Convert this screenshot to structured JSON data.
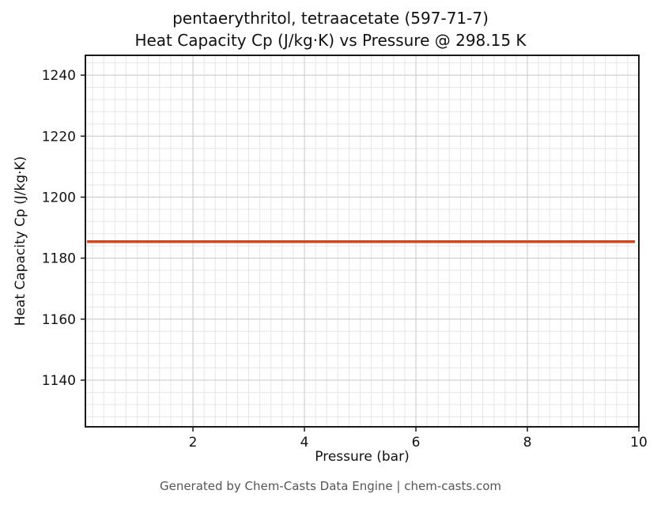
{
  "chart_data": {
    "type": "line",
    "title_line1": "pentaerythritol, tetraacetate (597-71-7)",
    "title_line2": "Heat Capacity Cp (J/kg·K) vs Pressure @ 298.15 K",
    "xlabel": "Pressure (bar)",
    "ylabel": "Heat Capacity Cp (J/kg·K)",
    "xlim": [
      0.07,
      10.0
    ],
    "ylim": [
      1124.7,
      1246.5
    ],
    "xticks": [
      2,
      4,
      6,
      8,
      10
    ],
    "yticks": [
      1140,
      1160,
      1180,
      1200,
      1220,
      1240
    ],
    "x_minor_step": 0.2,
    "y_minor_step": 4,
    "grid": true,
    "series": [
      {
        "name": "Heat Capacity Cp",
        "x": [
          0.1,
          9.93
        ],
        "y": [
          1185.4,
          1185.4
        ],
        "color": "#d0481f",
        "width": 3.5
      }
    ],
    "footer": "Generated by Chem-Casts Data Engine | chem-casts.com"
  },
  "style_colors": {
    "spine": "#1a1a1a",
    "major_grid": "#c9c9c9",
    "minor_grid": "#e6e6e6",
    "tick": "#1a1a1a",
    "tick_label": "#111111"
  }
}
